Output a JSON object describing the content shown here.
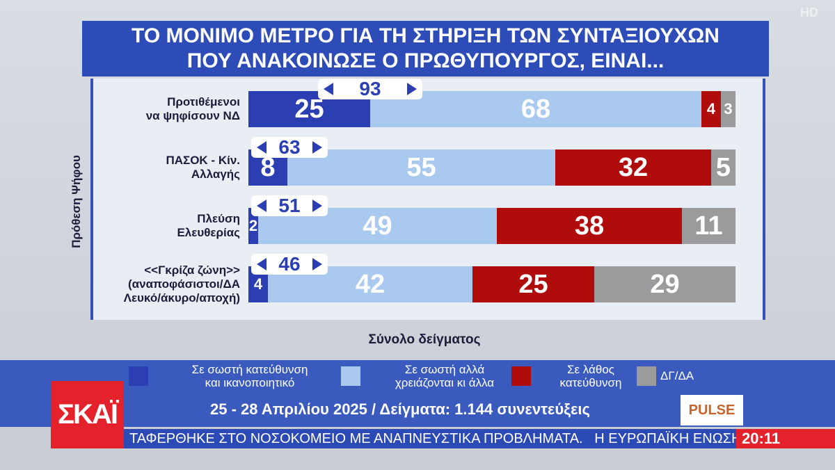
{
  "chart_data": {
    "type": "stacked-bar",
    "title": "ΤΟ ΜΟΝΙΜΟ ΜΕΤΡΟ ΓΙΑ ΤΗ ΣΤΗΡΙΞΗ ΤΩΝ ΣΥΝΤΑΞΙΟΥΧΩΝ\nΠΟΥ ΑΝΑΚΟΙΝΩΣΕ Ο ΠΡΩΘΥΠΟΥΡΓΟΣ, ΕΙΝΑΙ...",
    "y_label": "Πρόθεση Ψήφου",
    "x_label": "Σύνολο δείγματος",
    "categories": [
      "Προτιθέμενοι\nνα ψηφίσουν ΝΔ",
      "ΠΑΣΟΚ - Κίν.\nΑλλαγής",
      "Πλεύση\nΕλευθερίας",
      "<<Γκρίζα ζώνη>>\n(αναποφάσιστοι/ΔΑ\nΛευκό/άκυρο/αποχή)"
    ],
    "series": [
      {
        "name": "Σε σωστή κατεύθυνση\nκαι ικανοποιητικό",
        "color": "#2b3fb3",
        "values": [
          25,
          8,
          2,
          4
        ]
      },
      {
        "name": "Σε σωστή αλλά\nχρειάζονται κι άλλα",
        "color": "#a9c9ef",
        "values": [
          68,
          55,
          49,
          42
        ]
      },
      {
        "name": "Σε λάθος\nκατεύθυνση",
        "color": "#b00c0c",
        "values": [
          4,
          32,
          38,
          25
        ]
      },
      {
        "name": "ΔΓ/ΔΑ",
        "color": "#9b9b9d",
        "values": [
          3,
          5,
          11,
          29
        ]
      }
    ],
    "bracket_values": [
      93,
      63,
      51,
      46
    ],
    "xlim": [
      0,
      100
    ]
  },
  "footer": {
    "survey": "25 - 28 Απριλίου 2025 / Δείγματα: 1.144 συνεντεύξεις",
    "pollster": "PULSE"
  },
  "channel": {
    "logo": "ΣΚΑΪ",
    "hd": "HD",
    "ticker": "ΤΑΦΕΡΘΗΚΕ ΣΤΟ ΝΟΣΟΚΟΜΕΙΟ ΜΕ ΑΝΑΠΝΕΥΣΤΙΚΑ ΠΡΟΒΛΗΜΑΤΑ.   Η ΕΥΡΩΠΑΪΚΗ ΕΝΩΣΗ Α",
    "time": "20:11"
  }
}
